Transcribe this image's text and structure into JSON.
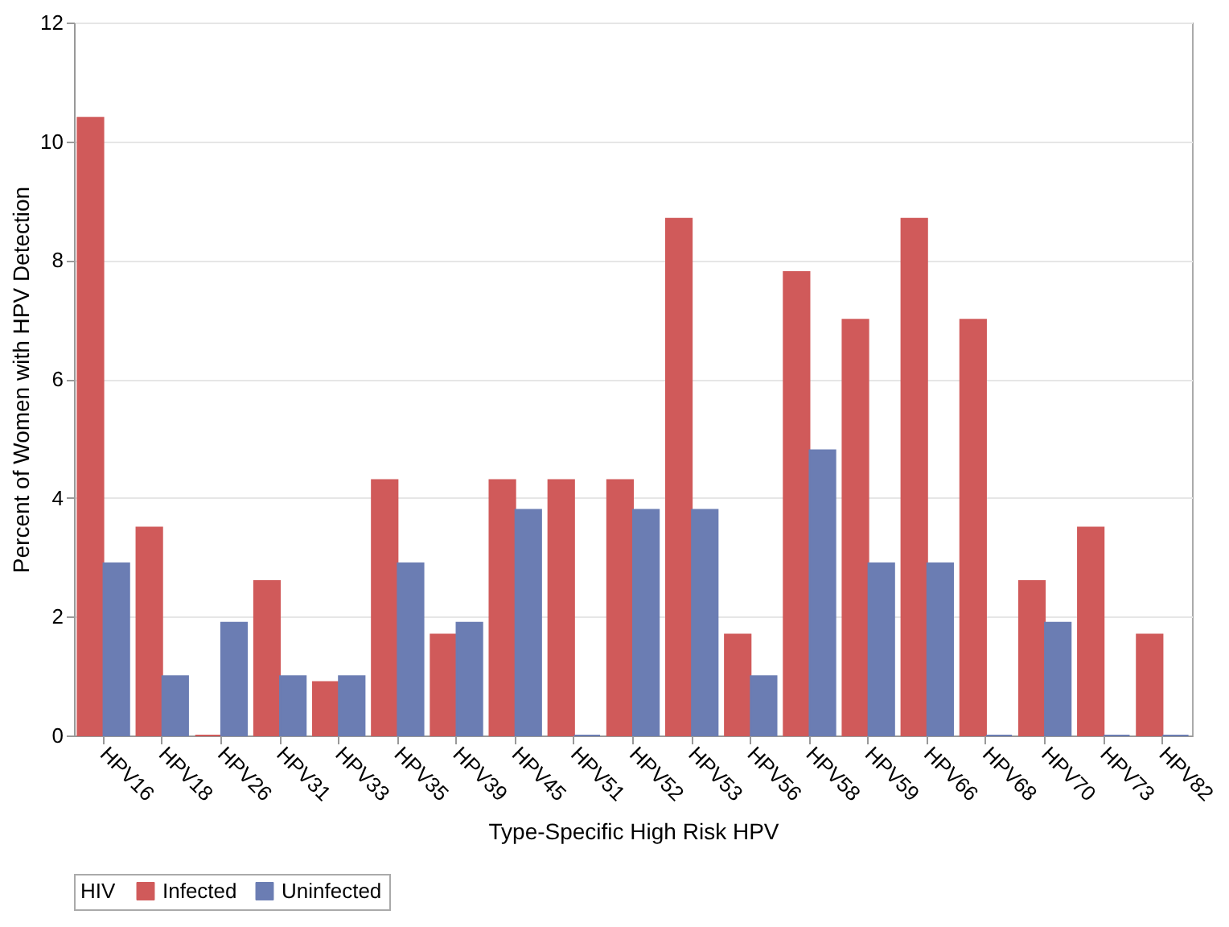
{
  "chart_data": {
    "type": "bar",
    "xlabel": "Type-Specific High Risk HPV",
    "ylabel": "Percent of Women with HPV Detection",
    "legend_title": "HIV",
    "categories": [
      "HPV16",
      "HPV18",
      "HPV26",
      "HPV31",
      "HPV33",
      "HPV35",
      "HPV39",
      "HPV45",
      "HPV51",
      "HPV52",
      "HPV53",
      "HPV56",
      "HPV58",
      "HPV59",
      "HPV66",
      "HPV68",
      "HPV70",
      "HPV73",
      "HPV82"
    ],
    "series": [
      {
        "name": "Infected",
        "color": "#d05a5a",
        "values": [
          10.4,
          3.5,
          0,
          2.6,
          0.9,
          4.3,
          1.7,
          4.3,
          4.3,
          4.3,
          8.7,
          1.7,
          7.8,
          7.0,
          8.7,
          7.0,
          2.6,
          3.5,
          1.7
        ]
      },
      {
        "name": "Uninfected",
        "color": "#6b7db3",
        "values": [
          2.9,
          1.0,
          1.9,
          1.0,
          1.0,
          2.9,
          1.9,
          3.8,
          0,
          3.8,
          3.8,
          1.0,
          4.8,
          2.9,
          2.9,
          0,
          1.9,
          0,
          0
        ]
      }
    ],
    "ylim": [
      0,
      12
    ],
    "yticks": [
      0,
      2,
      4,
      6,
      8,
      10,
      12
    ],
    "grid": "y",
    "legend": "bottom"
  }
}
